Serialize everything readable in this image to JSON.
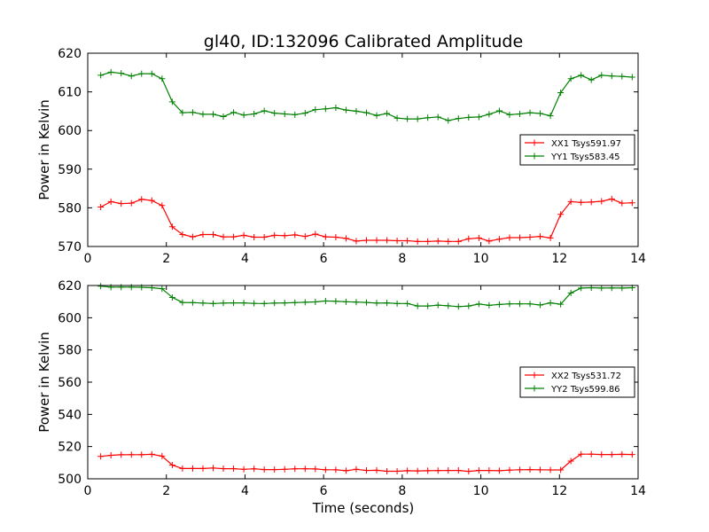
{
  "figure": {
    "title": "gl40, ID:132096 Calibrated Amplitude",
    "xlabel": "Time (seconds)"
  },
  "chart_data": [
    {
      "type": "line",
      "title": "gl40, ID:132096 Calibrated Amplitude",
      "xlabel": "",
      "ylabel": "Power in Kelvin",
      "xlim": [
        0,
        14
      ],
      "ylim": [
        570,
        620
      ],
      "xticks": [
        0,
        2,
        4,
        6,
        8,
        10,
        12,
        14
      ],
      "yticks": [
        570,
        580,
        590,
        600,
        610,
        620
      ],
      "grid": false,
      "legend_position": "right",
      "x": [
        0.33,
        0.59,
        0.85,
        1.11,
        1.37,
        1.63,
        1.89,
        2.15,
        2.41,
        2.67,
        2.93,
        3.19,
        3.45,
        3.71,
        3.97,
        4.23,
        4.49,
        4.75,
        5.01,
        5.27,
        5.53,
        5.79,
        6.05,
        6.31,
        6.57,
        6.83,
        7.09,
        7.35,
        7.61,
        7.87,
        8.13,
        8.39,
        8.65,
        8.91,
        9.17,
        9.43,
        9.69,
        9.95,
        10.21,
        10.47,
        10.73,
        10.99,
        11.25,
        11.51,
        11.77,
        12.03,
        12.29,
        12.55,
        12.81,
        13.07,
        13.33,
        13.59,
        13.85
      ],
      "series": [
        {
          "name": "XX1 Tsys591.97",
          "color": "#ff0000",
          "values": [
            580.2,
            581.6,
            581.1,
            581.2,
            582.2,
            581.9,
            580.6,
            575.1,
            573.1,
            572.5,
            573.1,
            573.1,
            572.5,
            572.5,
            572.9,
            572.4,
            572.4,
            572.9,
            572.8,
            573.0,
            572.6,
            573.2,
            572.5,
            572.4,
            572.1,
            571.4,
            571.6,
            571.6,
            571.6,
            571.5,
            571.5,
            571.3,
            571.3,
            571.4,
            571.3,
            571.3,
            572.0,
            572.2,
            571.4,
            571.9,
            572.3,
            572.3,
            572.4,
            572.6,
            572.2,
            578.3,
            581.6,
            581.4,
            581.5,
            581.7,
            582.3,
            581.2,
            581.3
          ]
        },
        {
          "name": "YY1 Tsys583.45",
          "color": "#008000",
          "values": [
            614.3,
            615.1,
            614.8,
            614.1,
            614.7,
            614.7,
            613.4,
            607.4,
            604.6,
            604.7,
            604.2,
            604.2,
            603.6,
            604.7,
            604.0,
            604.3,
            605.1,
            604.5,
            604.3,
            604.1,
            604.5,
            605.4,
            605.6,
            605.9,
            605.3,
            605.0,
            604.6,
            603.9,
            604.4,
            603.2,
            603.0,
            603.0,
            603.3,
            603.5,
            602.6,
            603.1,
            603.4,
            603.5,
            604.2,
            605.1,
            604.1,
            604.3,
            604.6,
            604.4,
            603.8,
            609.8,
            613.4,
            614.3,
            613.1,
            614.3,
            614.1,
            614.0,
            613.8
          ]
        }
      ]
    },
    {
      "type": "line",
      "title": "",
      "xlabel": "Time (seconds)",
      "ylabel": "Power in Kelvin",
      "xlim": [
        0,
        14
      ],
      "ylim": [
        500,
        620
      ],
      "xticks": [
        0,
        2,
        4,
        6,
        8,
        10,
        12,
        14
      ],
      "yticks": [
        500,
        520,
        540,
        560,
        580,
        600,
        620
      ],
      "grid": false,
      "legend_position": "right",
      "x": [
        0.33,
        0.59,
        0.85,
        1.11,
        1.37,
        1.63,
        1.89,
        2.15,
        2.41,
        2.67,
        2.93,
        3.19,
        3.45,
        3.71,
        3.97,
        4.23,
        4.49,
        4.75,
        5.01,
        5.27,
        5.53,
        5.79,
        6.05,
        6.31,
        6.57,
        6.83,
        7.09,
        7.35,
        7.61,
        7.87,
        8.13,
        8.39,
        8.65,
        8.91,
        9.17,
        9.43,
        9.69,
        9.95,
        10.21,
        10.47,
        10.73,
        10.99,
        11.25,
        11.51,
        11.77,
        12.03,
        12.29,
        12.55,
        12.81,
        13.07,
        13.33,
        13.59,
        13.85
      ],
      "series": [
        {
          "name": "XX2 Tsys531.72",
          "color": "#ff0000",
          "values": [
            513.9,
            514.6,
            514.9,
            515.0,
            515.0,
            515.2,
            514.1,
            508.5,
            506.4,
            506.4,
            506.4,
            506.7,
            506.3,
            506.3,
            505.9,
            506.2,
            505.7,
            505.7,
            505.9,
            506.2,
            506.2,
            506.1,
            505.6,
            505.6,
            505.0,
            505.9,
            505.2,
            505.3,
            504.7,
            504.7,
            505.0,
            504.9,
            505.0,
            505.1,
            505.2,
            505.2,
            504.6,
            505.2,
            505.2,
            505.0,
            505.4,
            505.6,
            505.7,
            505.6,
            505.5,
            505.5,
            511.0,
            515.3,
            515.3,
            515.1,
            515.1,
            515.2,
            515.1
          ]
        },
        {
          "name": "YY2 Tsys599.86",
          "color": "#008000",
          "values": [
            619.6,
            619.0,
            619.0,
            619.0,
            618.9,
            618.6,
            618.0,
            612.6,
            609.5,
            609.4,
            609.1,
            608.8,
            609.1,
            609.2,
            609.2,
            608.9,
            608.8,
            609.1,
            609.2,
            609.4,
            609.6,
            609.8,
            610.4,
            610.2,
            609.9,
            609.7,
            609.5,
            609.1,
            609.2,
            608.8,
            608.8,
            607.3,
            607.3,
            607.8,
            607.4,
            606.9,
            607.3,
            608.5,
            607.7,
            608.2,
            608.6,
            608.6,
            608.6,
            607.9,
            609.2,
            608.4,
            615.4,
            618.4,
            618.6,
            618.4,
            618.5,
            618.4,
            618.6
          ]
        }
      ]
    }
  ]
}
